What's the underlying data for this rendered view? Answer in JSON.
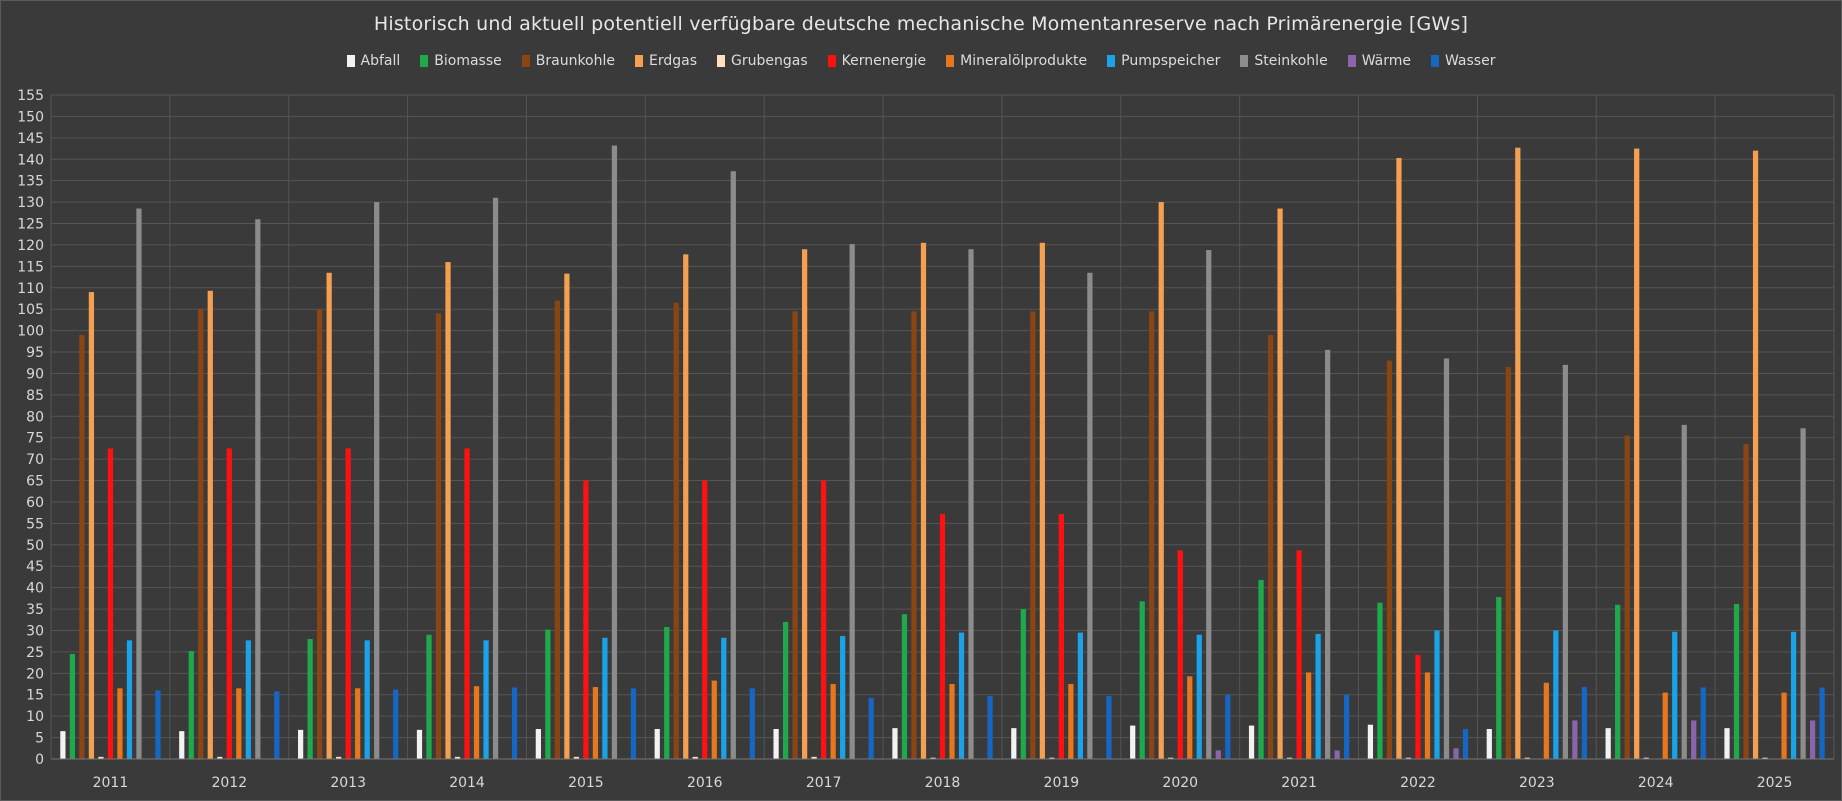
{
  "chart_data": {
    "type": "bar",
    "title": "Historisch und aktuell potentiell verfügbare deutsche mechanische Momentanreserve nach Primärenergie [GWs]",
    "xlabel": "",
    "ylabel": "",
    "ylim": [
      0,
      155
    ],
    "ytick_step": 5,
    "grid": true,
    "legend_position": "top",
    "categories": [
      "2011",
      "2012",
      "2013",
      "2014",
      "2015",
      "2016",
      "2017",
      "2018",
      "2019",
      "2020",
      "2021",
      "2022",
      "2023",
      "2024",
      "2025"
    ],
    "series": [
      {
        "name": "Abfall",
        "color": "#f2f2f2",
        "values": [
          6.5,
          6.5,
          6.8,
          6.8,
          7.0,
          7.0,
          7.0,
          7.2,
          7.2,
          7.8,
          7.8,
          8.0,
          7.0,
          7.2,
          7.2
        ]
      },
      {
        "name": "Biomasse",
        "color": "#1eaa4a",
        "values": [
          24.5,
          25.2,
          28.0,
          29.0,
          30.2,
          30.8,
          32.0,
          33.8,
          35.0,
          36.8,
          41.8,
          36.5,
          37.8,
          36.0,
          36.2
        ]
      },
      {
        "name": "Braunkohle",
        "color": "#8b4513",
        "values": [
          99.0,
          105.0,
          105.0,
          104.0,
          107.0,
          106.5,
          104.5,
          104.5,
          104.5,
          104.5,
          99.0,
          93.0,
          91.5,
          75.5,
          73.5
        ]
      },
      {
        "name": "Erdgas",
        "color": "#f4a050",
        "values": [
          109.0,
          109.3,
          113.5,
          116.0,
          113.3,
          117.8,
          119.0,
          120.5,
          120.5,
          130.0,
          128.5,
          140.3,
          142.7,
          142.5,
          142.0
        ]
      },
      {
        "name": "Grubengas",
        "color": "#fde0c0",
        "values": [
          0.5,
          0.5,
          0.5,
          0.5,
          0.5,
          0.5,
          0.5,
          0.3,
          0.3,
          0.3,
          0.3,
          0.3,
          0.3,
          0.3,
          0.3
        ]
      },
      {
        "name": "Kernenergie",
        "color": "#ff1111",
        "values": [
          72.5,
          72.5,
          72.5,
          72.5,
          65.0,
          65.0,
          65.0,
          57.2,
          57.2,
          48.7,
          48.7,
          24.3,
          0,
          0,
          0
        ]
      },
      {
        "name": "Mineralölprodukte",
        "color": "#e8761c",
        "values": [
          16.5,
          16.5,
          16.5,
          17.0,
          16.8,
          18.3,
          17.5,
          17.5,
          17.5,
          19.3,
          20.2,
          20.2,
          17.8,
          15.5,
          15.5
        ]
      },
      {
        "name": "Pumpspeicher",
        "color": "#1aa3e8",
        "values": [
          27.7,
          27.7,
          27.7,
          27.7,
          28.3,
          28.3,
          28.7,
          29.5,
          29.5,
          29.0,
          29.2,
          30.0,
          30.0,
          29.7,
          29.7
        ]
      },
      {
        "name": "Steinkohle",
        "color": "#8c8c8c",
        "values": [
          128.5,
          126.0,
          130.0,
          131.0,
          143.2,
          137.2,
          120.2,
          119.0,
          113.5,
          118.8,
          95.5,
          93.5,
          92.0,
          78.0,
          77.2
        ]
      },
      {
        "name": "Wärme",
        "color": "#8a65ac",
        "values": [
          0,
          0,
          0,
          0,
          0,
          0,
          0,
          0,
          0,
          2.0,
          2.0,
          2.5,
          9.0,
          9.0,
          9.0
        ]
      },
      {
        "name": "Wasser",
        "color": "#1666c4",
        "values": [
          16.0,
          15.8,
          16.2,
          16.7,
          16.5,
          16.5,
          14.3,
          14.7,
          14.7,
          15.0,
          15.0,
          7.0,
          16.8,
          16.7,
          16.7
        ]
      }
    ]
  }
}
